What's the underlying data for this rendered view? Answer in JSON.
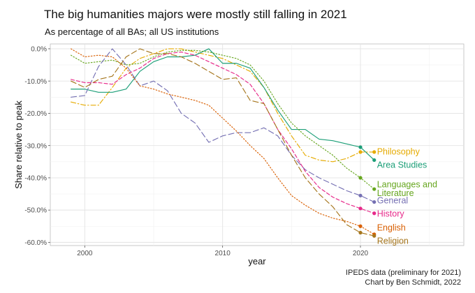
{
  "title": "The big humanities majors were mostly still falling in 2021",
  "subtitle": "As percentage of all BAs; all US institutions",
  "caption": {
    "line1": "IPEDS data (preliminary for 2021)",
    "line2": "Chart by Ben Schmidt, 2022"
  },
  "chart_data": {
    "type": "line",
    "title": "The big humanities majors were mostly still falling in 2021",
    "subtitle": "As percentage of all BAs; all US institutions",
    "xlabel": "year",
    "ylabel": "Share relative to peak",
    "xlim": [
      1997.5,
      2027.5
    ],
    "ylim": [
      -61.0,
      1.5
    ],
    "x_ticks": [
      2000,
      2010,
      2020
    ],
    "x_tick_labels": [
      "2000",
      "2010",
      "2020"
    ],
    "y_ticks": [
      0,
      -10,
      -20,
      -30,
      -40,
      -50,
      -60
    ],
    "y_tick_labels": [
      "0.0%",
      "-10.0%",
      "-20.0%",
      "-30.0%",
      "-40.0%",
      "-50.0%",
      "-60.0%"
    ],
    "grid": true,
    "legend": "direct labels at line ends",
    "x": [
      1999,
      2000,
      2001,
      2002,
      2003,
      2004,
      2005,
      2006,
      2007,
      2008,
      2009,
      2010,
      2011,
      2012,
      2013,
      2014,
      2015,
      2016,
      2017,
      2018,
      2019,
      2020,
      2021
    ],
    "series": [
      {
        "name": "Philosophy",
        "color": "#E6AB02",
        "dash": "dashdot",
        "values": [
          -16.5,
          -17.5,
          -17.5,
          -12,
          -6,
          -3,
          -1.5,
          0,
          0,
          -1,
          -2,
          -3,
          -5,
          -7,
          -12,
          -20,
          -27,
          -33,
          -34.5,
          -35,
          -34,
          -32,
          -32
        ]
      },
      {
        "name": "Area Studies",
        "color": "#1B9E77",
        "dash": "solid",
        "values": [
          -12.5,
          -12.5,
          -13.5,
          -13.5,
          -12.5,
          -7,
          -4,
          -2.5,
          -2.5,
          -2,
          0,
          -4.5,
          -4.5,
          -6,
          -12,
          -19,
          -25,
          -25,
          -28,
          -28.5,
          -29.5,
          -30.5,
          -34.5
        ]
      },
      {
        "name": "Languages and Literature",
        "color": "#66A61E",
        "dash": "dotted",
        "values": [
          -2,
          -4.5,
          -4,
          -3.5,
          -5,
          -4.5,
          -2.5,
          -1,
          -0.5,
          -0.5,
          -1,
          -2,
          -3,
          -5,
          -10,
          -17,
          -23,
          -27,
          -30,
          -33,
          -37,
          -40,
          -43.5
        ]
      },
      {
        "name": "General",
        "color": "#7570B3",
        "dash": "longdash",
        "values": [
          -15,
          -14.5,
          -5.5,
          0,
          -5,
          -11.5,
          -10,
          -13,
          -20,
          -23,
          -29,
          -27,
          -26,
          -26,
          -24.5,
          -27,
          -33,
          -37.5,
          -40,
          -42,
          -44,
          -45.5,
          -47.5
        ]
      },
      {
        "name": "History",
        "color": "#E7298A",
        "dash": "dashed",
        "values": [
          -9.5,
          -10.5,
          -10.5,
          -11,
          -8,
          -6,
          -3,
          -1.5,
          -1,
          -2,
          -4,
          -6,
          -8,
          -11,
          -17,
          -25,
          -31,
          -38,
          -43,
          -46,
          -48,
          -49.5,
          -51
        ]
      },
      {
        "name": "English",
        "color": "#D95F02",
        "dash": "dotted",
        "values": [
          0,
          -2.5,
          -2,
          -2.5,
          -6,
          -11.5,
          -12.5,
          -14,
          -15,
          -16,
          -17.5,
          -21.5,
          -25.5,
          -30,
          -34,
          -40,
          -45.5,
          -48.5,
          -51,
          -52.5,
          -53.5,
          -55,
          -57.5
        ]
      },
      {
        "name": "Religion",
        "color": "#A6761D",
        "dash": "longdash",
        "values": [
          -10,
          -12,
          -9.5,
          -8.5,
          -2.5,
          0,
          -1.5,
          -1.5,
          -2.5,
          -4.5,
          -7,
          -9.5,
          -9,
          -16,
          -17,
          -25,
          -33,
          -40,
          -45,
          -49,
          -54.5,
          -57,
          -58
        ]
      }
    ],
    "end_labels": [
      {
        "series": "Philosophy",
        "lines": [
          "Philosophy"
        ],
        "y": -31.8
      },
      {
        "series": "Area Studies",
        "lines": [
          "Area Studies"
        ],
        "y": -35.9
      },
      {
        "series": "Languages and Literature",
        "lines": [
          "Languages and",
          "Literature"
        ],
        "y": -42.0
      },
      {
        "series": "General",
        "lines": [
          "General"
        ],
        "y": -46.9
      },
      {
        "series": "History",
        "lines": [
          "History"
        ],
        "y": -51.1
      },
      {
        "series": "English",
        "lines": [
          "English"
        ],
        "y": -55.4
      },
      {
        "series": "Religion",
        "lines": [
          "Religion"
        ],
        "y": -59.5
      }
    ]
  }
}
